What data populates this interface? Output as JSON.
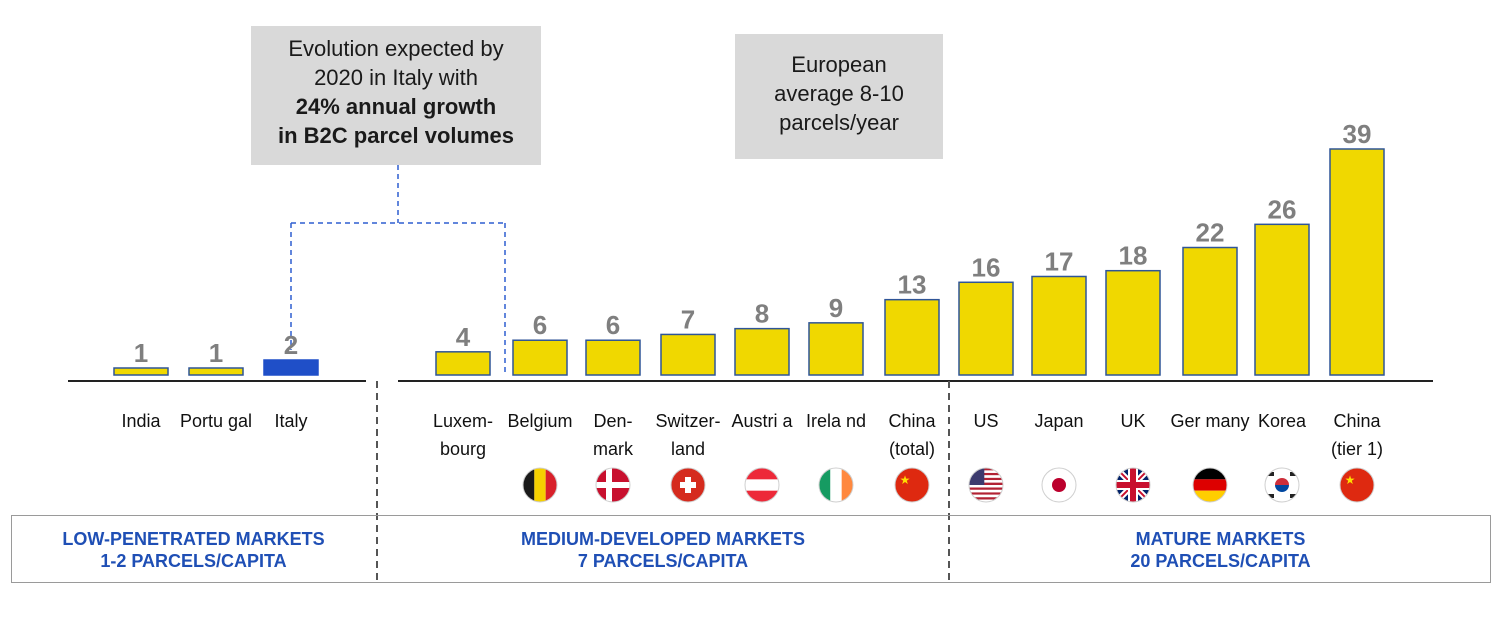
{
  "callouts": {
    "italy": {
      "line1": "Evolution expected by",
      "line2": "2020 in Italy with",
      "line3": "24% annual growth",
      "line4": "in B2C parcel volumes"
    },
    "europe": {
      "line1": "European",
      "line2": "average 8-10",
      "line3": "parcels/year"
    }
  },
  "bands": [
    {
      "title": "LOW-PENETRATED MARKETS",
      "subtitle": "1-2 PARCELS/CAPITA"
    },
    {
      "title": "MEDIUM-DEVELOPED MARKETS",
      "subtitle": "7 PARCELS/CAPITA"
    },
    {
      "title": "MATURE MARKETS",
      "subtitle": "20 PARCELS/CAPITA"
    }
  ],
  "colors": {
    "bar": "#f0d800",
    "bar_highlight": "#1f4fc8",
    "bar_border": "#2f5597",
    "value_label": "#7f7f7f",
    "connector": "#2f5fd0",
    "band_text": "#1f4fb5"
  },
  "chart_data": {
    "type": "bar",
    "groups": [
      "LOW-PENETRATED MARKETS",
      "MEDIUM-DEVELOPED MARKETS",
      "MATURE MARKETS"
    ],
    "categories": [
      {
        "label": [
          "India"
        ],
        "group": 0,
        "flag": ""
      },
      {
        "label": [
          "Portu gal"
        ],
        "group": 0,
        "flag": ""
      },
      {
        "label": [
          "Italy"
        ],
        "group": 0,
        "flag": "",
        "highlight": true
      },
      {
        "label": [
          "Luxem-",
          "bourg"
        ],
        "group": 1,
        "flag": ""
      },
      {
        "label": [
          "Belgium"
        ],
        "group": 1,
        "flag": "belgium-flag-icon"
      },
      {
        "label": [
          "Den-",
          "mark"
        ],
        "group": 1,
        "flag": "denmark-flag-icon"
      },
      {
        "label": [
          "Switzer-",
          "land"
        ],
        "group": 1,
        "flag": "switzerland-flag-icon"
      },
      {
        "label": [
          "Austri a"
        ],
        "group": 1,
        "flag": "austria-flag-icon"
      },
      {
        "label": [
          "Irela nd"
        ],
        "group": 1,
        "flag": "ireland-flag-icon"
      },
      {
        "label": [
          "China",
          "(total)"
        ],
        "group": 1,
        "flag": "china-flag-icon"
      },
      {
        "label": [
          "US"
        ],
        "group": 2,
        "flag": "us-flag-icon"
      },
      {
        "label": [
          "Japan"
        ],
        "group": 2,
        "flag": "japan-flag-icon"
      },
      {
        "label": [
          "UK"
        ],
        "group": 2,
        "flag": "uk-flag-icon"
      },
      {
        "label": [
          "Ger many"
        ],
        "group": 2,
        "flag": "germany-flag-icon"
      },
      {
        "label": [
          "Korea"
        ],
        "group": 2,
        "flag": "korea-flag-icon"
      },
      {
        "label": [
          "China",
          "(tier 1)"
        ],
        "group": 2,
        "flag": "china-flag-icon"
      }
    ],
    "values": [
      1,
      1,
      2,
      4,
      6,
      6,
      7,
      8,
      9,
      13,
      16,
      17,
      18,
      22,
      26,
      39
    ],
    "ylim": [
      0,
      39
    ],
    "grid": false,
    "legend": "none"
  }
}
